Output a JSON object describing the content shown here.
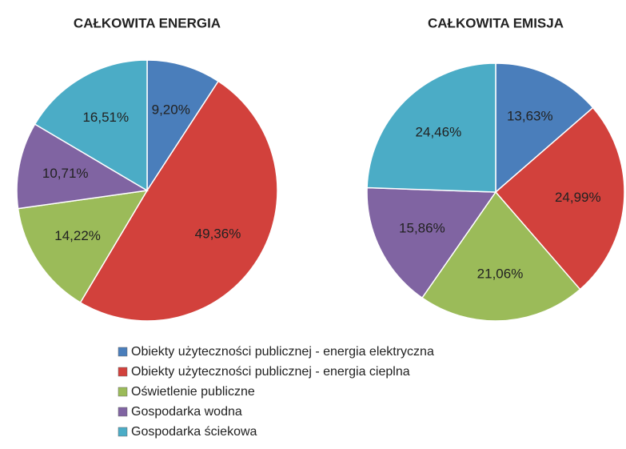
{
  "chart_data": [
    {
      "type": "pie",
      "title": "CAŁKOWITA ENERGIA",
      "categories": [
        "Obiekty użyteczności publicznej - energia elektryczna",
        "Obiekty użyteczności publicznej - energia cieplna",
        "Oświetlenie publiczne",
        "Gospodarka wodna",
        "Gospodarka ściekowa"
      ],
      "values": [
        9.2,
        49.36,
        14.22,
        10.71,
        16.51
      ],
      "value_labels": [
        "9,20%",
        "49,36%",
        "14,22%",
        "10,71%",
        "16,51%"
      ],
      "colors": [
        "#4a7ebb",
        "#d2413c",
        "#9bbb59",
        "#8064a2",
        "#4bacc6"
      ]
    },
    {
      "type": "pie",
      "title": "CAŁKOWITA EMISJA",
      "categories": [
        "Obiekty użyteczności publicznej - energia elektryczna",
        "Obiekty użyteczności publicznej - energia cieplna",
        "Oświetlenie publiczne",
        "Gospodarka wodna",
        "Gospodarka ściekowa"
      ],
      "values": [
        13.63,
        24.99,
        21.06,
        15.86,
        24.46
      ],
      "value_labels": [
        "13,63%",
        "24,99%",
        "21,06%",
        "15,86%",
        "24,46%"
      ],
      "colors": [
        "#4a7ebb",
        "#d2413c",
        "#9bbb59",
        "#8064a2",
        "#4bacc6"
      ]
    }
  ]
}
